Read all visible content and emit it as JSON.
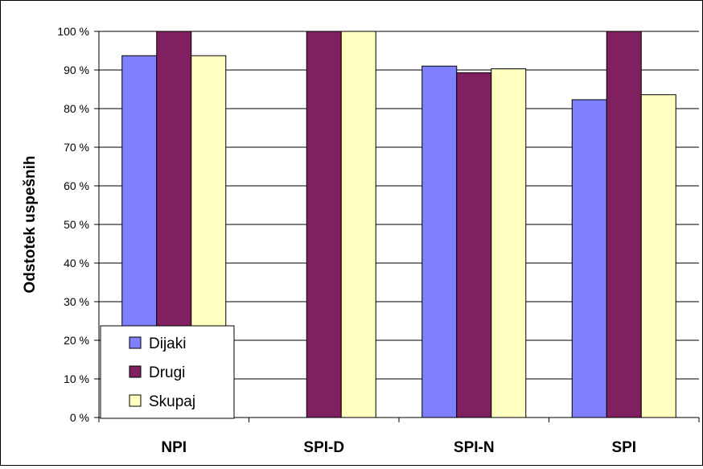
{
  "chart_data": {
    "type": "bar",
    "title": "",
    "xlabel": "",
    "ylabel": "Odstotek uspešnih",
    "categories": [
      "NPI",
      "SPI-D",
      "SPI-N",
      "SPI"
    ],
    "series": [
      {
        "name": "Dijaki",
        "color": "#8080ff",
        "values": [
          93.7,
          null,
          91.0,
          82.3
        ]
      },
      {
        "name": "Drugi",
        "color": "#802060",
        "values": [
          100,
          100,
          89.3,
          100
        ]
      },
      {
        "name": "Skupaj",
        "color": "#ffffc0",
        "values": [
          93.7,
          100,
          90.3,
          83.6
        ]
      }
    ],
    "ylim": [
      0,
      100
    ],
    "yticks": [
      "0 %",
      "10 %",
      "20 %",
      "30 %",
      "40 %",
      "50 %",
      "60 %",
      "70 %",
      "80 %",
      "90 %",
      "100 %"
    ],
    "grid": true,
    "legend_position": "bottom-left"
  }
}
